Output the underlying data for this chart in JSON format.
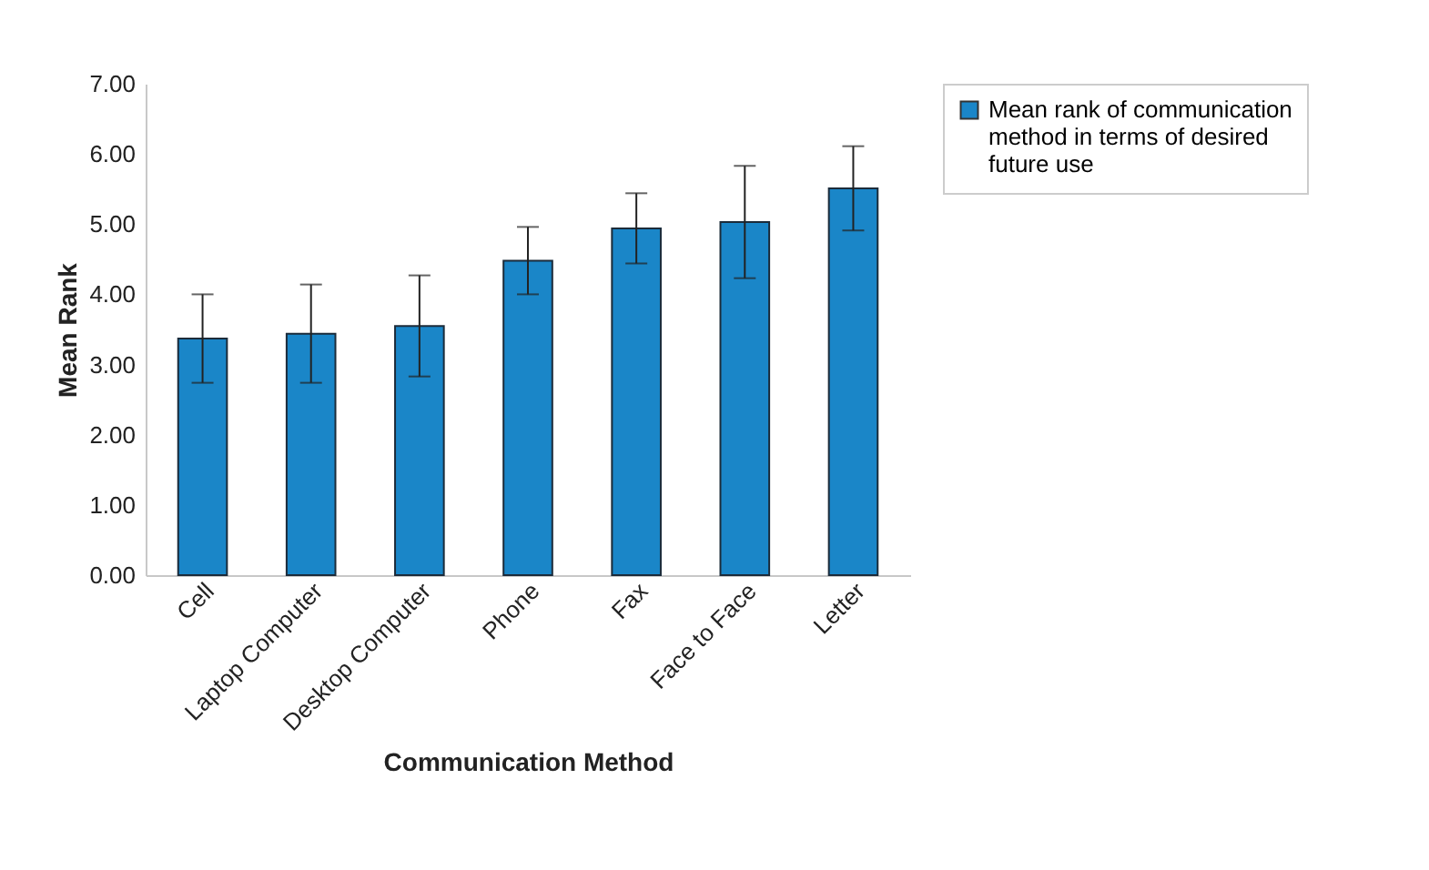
{
  "chart_data": {
    "type": "bar",
    "xlabel": "Communication Method",
    "ylabel": "Mean Rank",
    "categories": [
      "Cell",
      "Laptop Computer",
      "Desktop Computer",
      "Phone",
      "Fax",
      "Face to Face",
      "Letter"
    ],
    "series": [
      {
        "name": "Mean rank of communication method in terms of desired future use",
        "color": "#1a86c8",
        "values": [
          3.37,
          3.44,
          3.55,
          4.48,
          4.94,
          5.03,
          5.51
        ],
        "errors": [
          0.63,
          0.7,
          0.72,
          0.48,
          0.5,
          0.8,
          0.6
        ]
      }
    ],
    "ylim": [
      0,
      7
    ],
    "yticks": [
      {
        "value": 0,
        "label": "0.00"
      },
      {
        "value": 1,
        "label": "1.00"
      },
      {
        "value": 2,
        "label": "2.00"
      },
      {
        "value": 3,
        "label": "3.00"
      },
      {
        "value": 4,
        "label": "4.00"
      },
      {
        "value": 5,
        "label": "5.00"
      },
      {
        "value": 6,
        "label": "6.00"
      },
      {
        "value": 7,
        "label": "7.00"
      }
    ],
    "grid": false,
    "legend": "right"
  }
}
